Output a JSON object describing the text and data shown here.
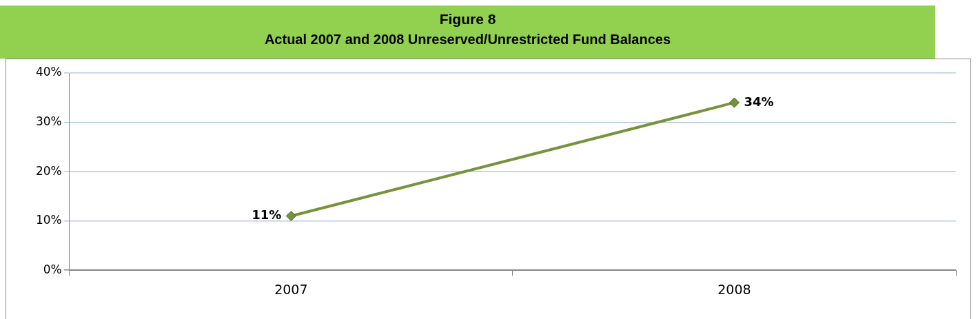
{
  "chart_data": {
    "type": "line",
    "title": "Figure 8",
    "subtitle": "Actual 2007 and 2008 Unreserved/Unrestricted Fund Balances",
    "categories": [
      "2007",
      "2008"
    ],
    "series": [
      {
        "color": "#77933c",
        "values": [
          11,
          34
        ],
        "value_labels": [
          "11%",
          "34%"
        ]
      }
    ],
    "ylim": [
      0,
      40
    ],
    "yticks": [
      {
        "value": 0,
        "label": "0%"
      },
      {
        "value": 10,
        "label": "10%"
      },
      {
        "value": 20,
        "label": "20%"
      },
      {
        "value": 30,
        "label": "30%"
      },
      {
        "value": 40,
        "label": "40%"
      }
    ],
    "grid": "y",
    "legend": false,
    "marker": "diamond",
    "line_style": "solid"
  }
}
